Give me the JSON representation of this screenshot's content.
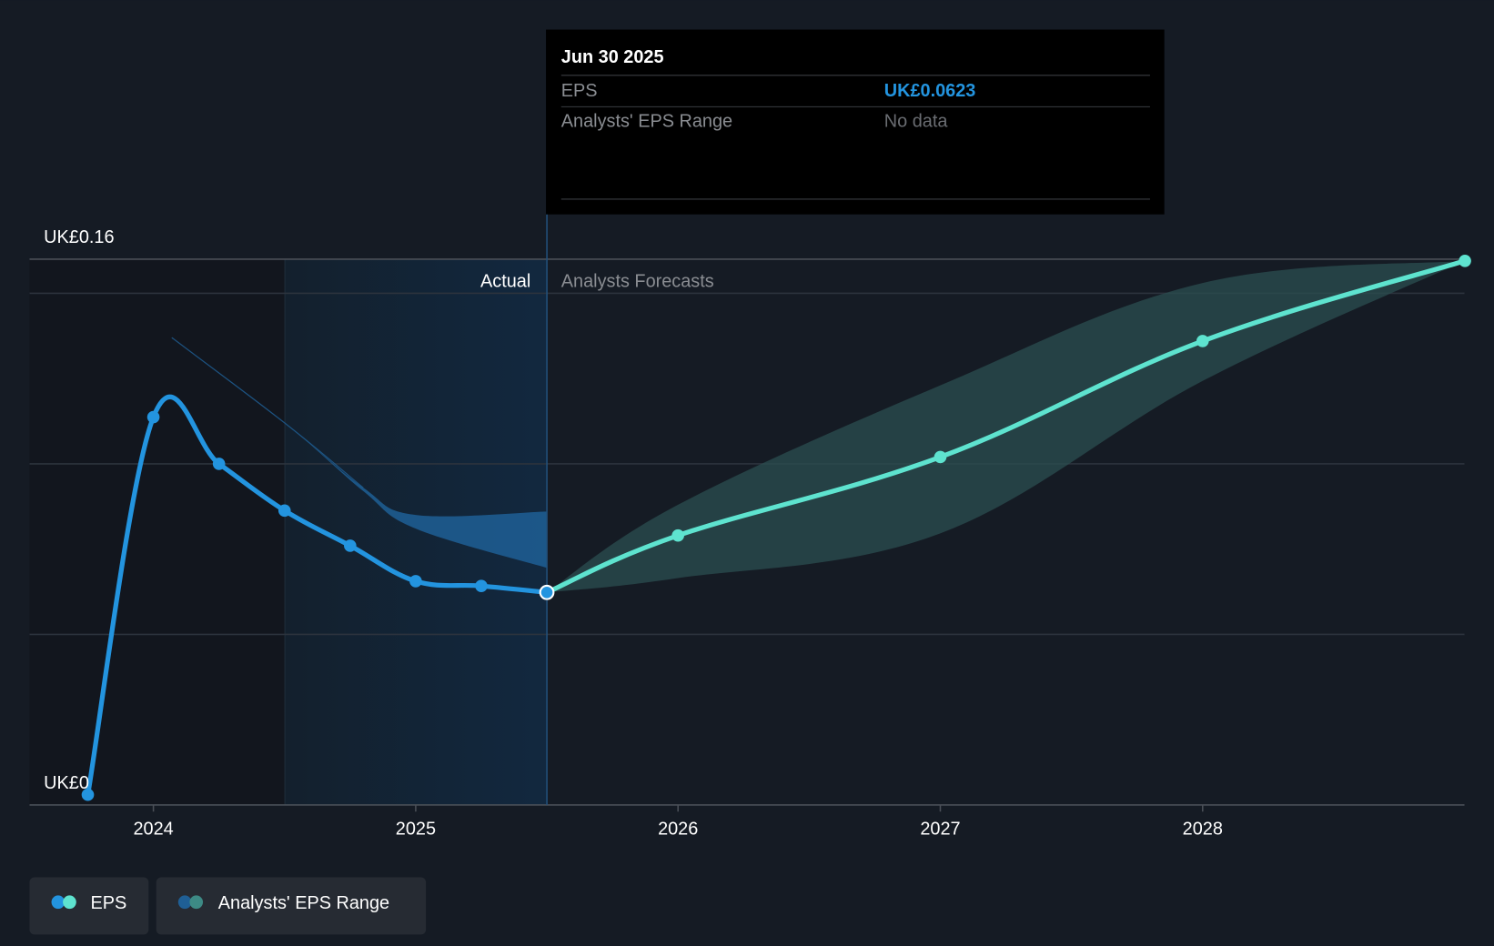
{
  "chart_data": {
    "type": "line",
    "title": "",
    "xlabel": "",
    "ylabel": "",
    "y_tick_labels": [
      "UK£0",
      "UK£0.16"
    ],
    "ylim": [
      0,
      0.16
    ],
    "xlim": [
      2023.55,
      2029.0
    ],
    "x_tick_labels": [
      "2024",
      "2025",
      "2026",
      "2027",
      "2028"
    ],
    "x_ticks": [
      2024,
      2025,
      2026,
      2027,
      2028
    ],
    "grid": true,
    "gridlines": [
      0.05,
      0.1,
      0.15,
      0.16
    ],
    "divider_x": 2025.5,
    "section_labels": {
      "actual": "Actual",
      "forecast": "Analysts Forecasts"
    },
    "series": [
      {
        "name": "EPS",
        "kind": "actual",
        "color": "#2394df",
        "points": [
          [
            2023.75,
            0.003
          ],
          [
            2024.0,
            0.1137
          ],
          [
            2024.25,
            0.1
          ],
          [
            2024.5,
            0.0863
          ],
          [
            2024.75,
            0.076
          ],
          [
            2025.0,
            0.0656
          ],
          [
            2025.25,
            0.0642
          ],
          [
            2025.5,
            0.0623
          ]
        ]
      },
      {
        "name": "EPS",
        "kind": "forecast",
        "color": "#5ee3cf",
        "points": [
          [
            2025.5,
            0.0623
          ],
          [
            2026.0,
            0.079
          ],
          [
            2027.0,
            0.102
          ],
          [
            2028.0,
            0.136
          ],
          [
            2029.0,
            0.1595
          ]
        ]
      }
    ],
    "ranges": [
      {
        "name": "Analysts' EPS Range",
        "kind": "past",
        "color": "#1f5f95",
        "upper": [
          [
            2024.07,
            0.137
          ],
          [
            2024.5,
            0.112
          ],
          [
            2024.8,
            0.093
          ],
          [
            2025.0,
            0.085
          ],
          [
            2025.5,
            0.086
          ]
        ],
        "lower": [
          [
            2024.07,
            0.137
          ],
          [
            2024.5,
            0.112
          ],
          [
            2024.8,
            0.092
          ],
          [
            2025.0,
            0.081
          ],
          [
            2025.5,
            0.0695
          ]
        ]
      },
      {
        "name": "Analysts' EPS Range",
        "kind": "forecast",
        "color": "#2b4f50",
        "upper": [
          [
            2025.5,
            0.0623
          ],
          [
            2026.0,
            0.088
          ],
          [
            2027.0,
            0.123
          ],
          [
            2028.0,
            0.153
          ],
          [
            2029.0,
            0.1595
          ]
        ],
        "lower": [
          [
            2025.5,
            0.0623
          ],
          [
            2026.0,
            0.0665
          ],
          [
            2027.0,
            0.0796
          ],
          [
            2028.0,
            0.1243
          ],
          [
            2029.0,
            0.1595
          ]
        ]
      }
    ],
    "legend": [
      {
        "label": "EPS",
        "colors": [
          "#2394df",
          "#5ee3cf"
        ]
      },
      {
        "label": "Analysts' EPS Range",
        "colors": [
          "#1f5f95",
          "#3d8a85"
        ]
      }
    ],
    "legend_placement": "bottom-left"
  },
  "tooltip": {
    "date": "Jun 30 2025",
    "rows": [
      {
        "label": "EPS",
        "value": "UK£0.0623",
        "value_color": "#2394df"
      },
      {
        "label": "Analysts' EPS Range",
        "value": "No data",
        "value_color": "#7a7d82"
      }
    ]
  }
}
